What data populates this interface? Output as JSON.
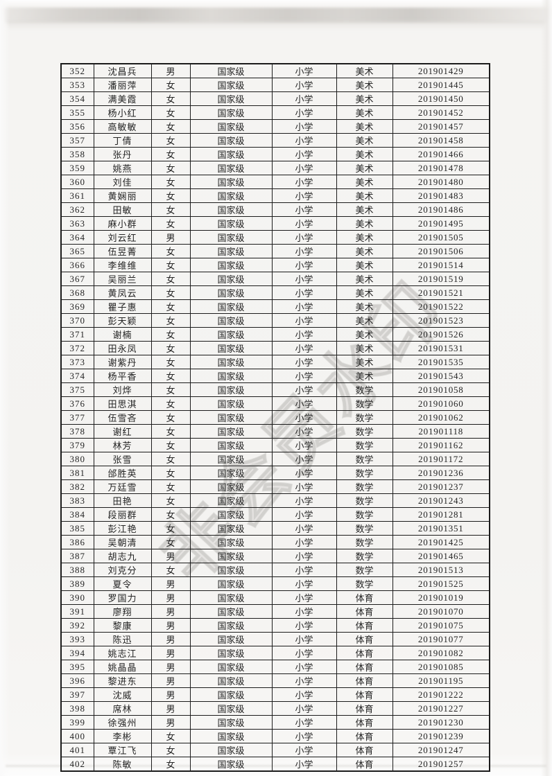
{
  "watermark": {
    "text": "非会员水印",
    "color": "#807e7a"
  },
  "colors": {
    "paper": "#f4f3f1",
    "ink": "#242424",
    "border": "#1b1b1b"
  },
  "table": {
    "rows": [
      [
        "352",
        "沈昌兵",
        "男",
        "国家级",
        "小学",
        "美术",
        "201901429"
      ],
      [
        "353",
        "潘丽萍",
        "女",
        "国家级",
        "小学",
        "美术",
        "201901445"
      ],
      [
        "354",
        "满美霞",
        "女",
        "国家级",
        "小学",
        "美术",
        "201901450"
      ],
      [
        "355",
        "杨小红",
        "女",
        "国家级",
        "小学",
        "美术",
        "201901452"
      ],
      [
        "356",
        "高敏敏",
        "女",
        "国家级",
        "小学",
        "美术",
        "201901457"
      ],
      [
        "357",
        "丁倩",
        "女",
        "国家级",
        "小学",
        "美术",
        "201901458"
      ],
      [
        "358",
        "张丹",
        "女",
        "国家级",
        "小学",
        "美术",
        "201901466"
      ],
      [
        "359",
        "姚燕",
        "女",
        "国家级",
        "小学",
        "美术",
        "201901478"
      ],
      [
        "360",
        "刘佳",
        "女",
        "国家级",
        "小学",
        "美术",
        "201901480"
      ],
      [
        "361",
        "黄娴丽",
        "女",
        "国家级",
        "小学",
        "美术",
        "201901483"
      ],
      [
        "362",
        "田敏",
        "女",
        "国家级",
        "小学",
        "美术",
        "201901486"
      ],
      [
        "363",
        "麻小群",
        "女",
        "国家级",
        "小学",
        "美术",
        "201901495"
      ],
      [
        "364",
        "刘云红",
        "男",
        "国家级",
        "小学",
        "美术",
        "201901505"
      ],
      [
        "365",
        "伍昱菁",
        "女",
        "国家级",
        "小学",
        "美术",
        "201901506"
      ],
      [
        "366",
        "李维维",
        "女",
        "国家级",
        "小学",
        "美术",
        "201901514"
      ],
      [
        "367",
        "吴丽兰",
        "女",
        "国家级",
        "小学",
        "美术",
        "201901519"
      ],
      [
        "368",
        "黄凤云",
        "女",
        "国家级",
        "小学",
        "美术",
        "201901521"
      ],
      [
        "369",
        "瞿子惠",
        "女",
        "国家级",
        "小学",
        "美术",
        "201901522"
      ],
      [
        "370",
        "彭天颖",
        "女",
        "国家级",
        "小学",
        "美术",
        "201901523"
      ],
      [
        "371",
        "谢楠",
        "女",
        "国家级",
        "小学",
        "美术",
        "201901526"
      ],
      [
        "372",
        "田永凤",
        "女",
        "国家级",
        "小学",
        "美术",
        "201901531"
      ],
      [
        "373",
        "谢紫丹",
        "女",
        "国家级",
        "小学",
        "美术",
        "201901535"
      ],
      [
        "374",
        "杨平香",
        "女",
        "国家级",
        "小学",
        "美术",
        "201901543"
      ],
      [
        "375",
        "刘烨",
        "女",
        "国家级",
        "小学",
        "数学",
        "201901058"
      ],
      [
        "376",
        "田思淇",
        "女",
        "国家级",
        "小学",
        "数学",
        "201901060"
      ],
      [
        "377",
        "伍雪吝",
        "女",
        "国家级",
        "小学",
        "数学",
        "201901062"
      ],
      [
        "378",
        "谢红",
        "女",
        "国家级",
        "小学",
        "数学",
        "201901118"
      ],
      [
        "379",
        "林芳",
        "女",
        "国家级",
        "小学",
        "数学",
        "201901162"
      ],
      [
        "380",
        "张雪",
        "女",
        "国家级",
        "小学",
        "数学",
        "201901172"
      ],
      [
        "381",
        "邰胜英",
        "女",
        "国家级",
        "小学",
        "数学",
        "201901236"
      ],
      [
        "382",
        "万廷雪",
        "女",
        "国家级",
        "小学",
        "数学",
        "201901237"
      ],
      [
        "383",
        "田艳",
        "女",
        "国家级",
        "小学",
        "数学",
        "201901243"
      ],
      [
        "384",
        "段丽群",
        "女",
        "国家级",
        "小学",
        "数学",
        "201901281"
      ],
      [
        "385",
        "彭江艳",
        "女",
        "国家级",
        "小学",
        "数学",
        "201901351"
      ],
      [
        "386",
        "吴朝清",
        "女",
        "国家级",
        "小学",
        "数学",
        "201901425"
      ],
      [
        "387",
        "胡志九",
        "男",
        "国家级",
        "小学",
        "数学",
        "201901465"
      ],
      [
        "388",
        "刘克分",
        "女",
        "国家级",
        "小学",
        "数学",
        "201901513"
      ],
      [
        "389",
        "夏令",
        "男",
        "国家级",
        "小学",
        "数学",
        "201901525"
      ],
      [
        "390",
        "罗国力",
        "男",
        "国家级",
        "小学",
        "体育",
        "201901019"
      ],
      [
        "391",
        "廖翔",
        "男",
        "国家级",
        "小学",
        "体育",
        "201901070"
      ],
      [
        "392",
        "黎康",
        "男",
        "国家级",
        "小学",
        "体育",
        "201901075"
      ],
      [
        "393",
        "陈迅",
        "男",
        "国家级",
        "小学",
        "体育",
        "201901077"
      ],
      [
        "394",
        "姚志江",
        "男",
        "国家级",
        "小学",
        "体育",
        "201901082"
      ],
      [
        "395",
        "姚晶晶",
        "男",
        "国家级",
        "小学",
        "体育",
        "201901085"
      ],
      [
        "396",
        "黎进东",
        "男",
        "国家级",
        "小学",
        "体育",
        "201901195"
      ],
      [
        "397",
        "沈威",
        "男",
        "国家级",
        "小学",
        "体育",
        "201901222"
      ],
      [
        "398",
        "席林",
        "男",
        "国家级",
        "小学",
        "体育",
        "201901227"
      ],
      [
        "399",
        "徐强州",
        "男",
        "国家级",
        "小学",
        "体育",
        "201901230"
      ],
      [
        "400",
        "李彬",
        "女",
        "国家级",
        "小学",
        "体育",
        "201901239"
      ],
      [
        "401",
        "覃江飞",
        "女",
        "国家级",
        "小学",
        "体育",
        "201901247"
      ],
      [
        "402",
        "陈敏",
        "女",
        "国家级",
        "小学",
        "体育",
        "201901257"
      ]
    ]
  }
}
